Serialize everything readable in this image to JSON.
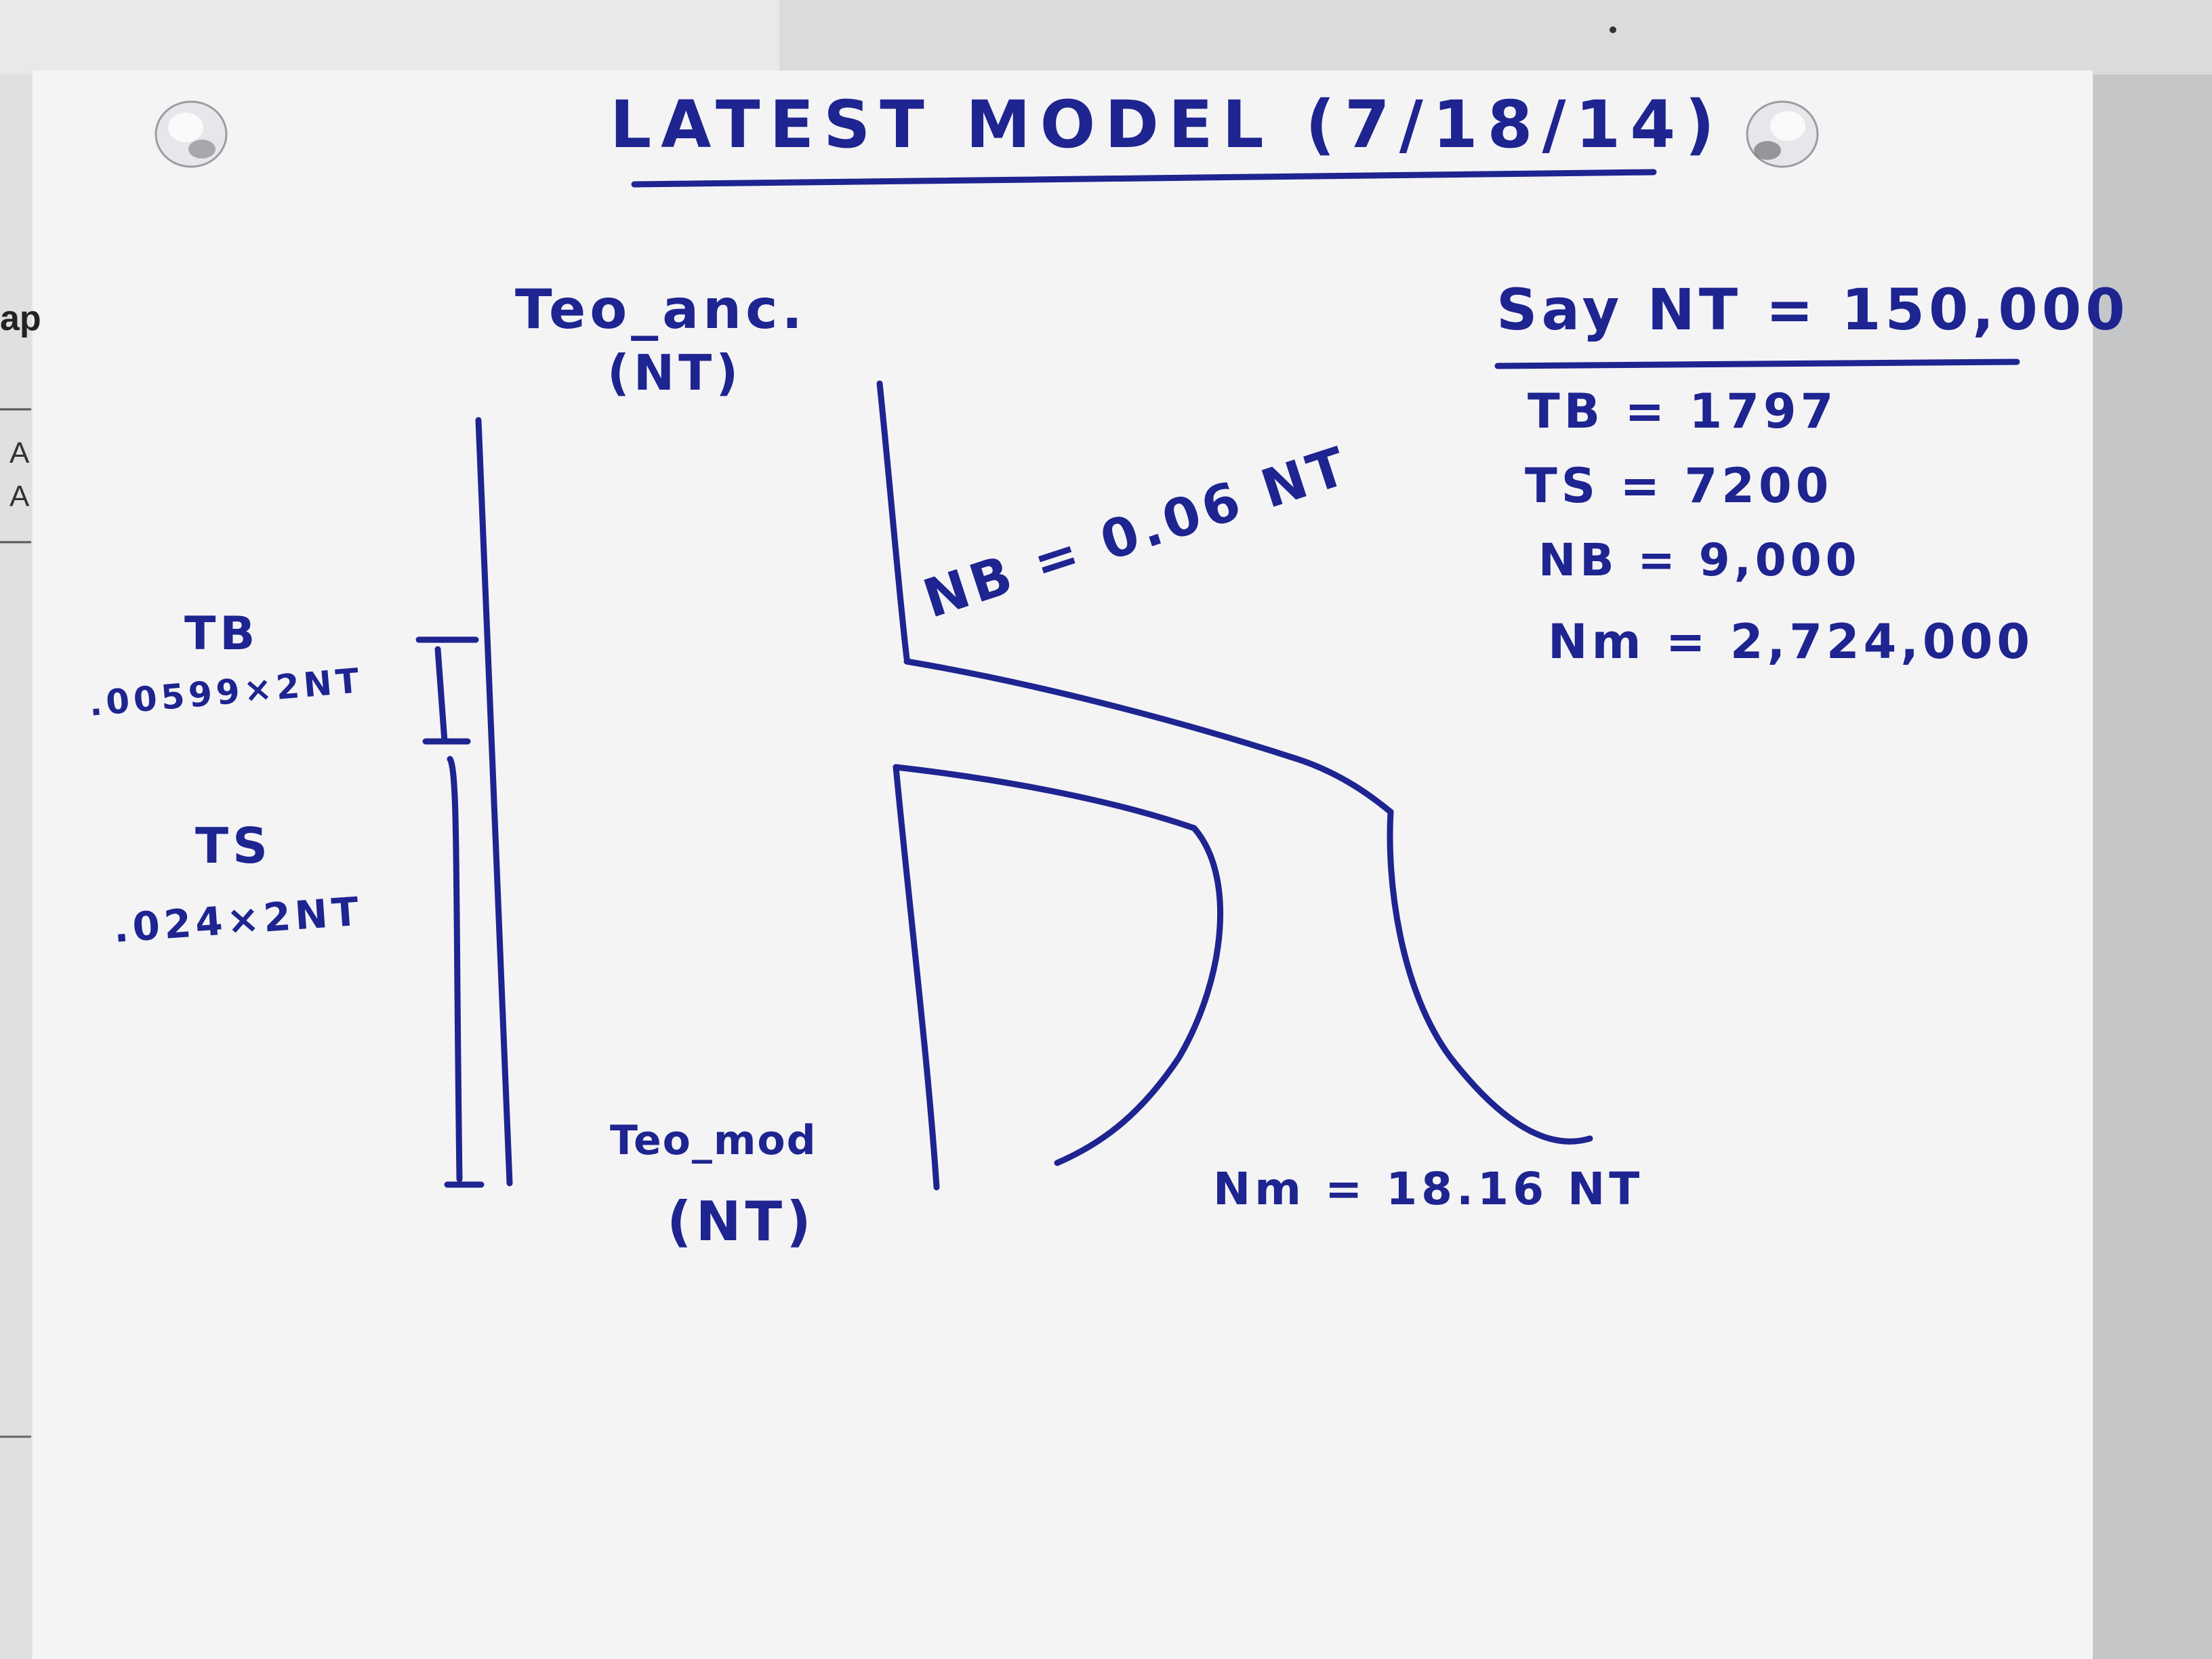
{
  "note": {
    "title": "LATEST MODEL (7/18/14)",
    "pop_ancient": "Teo_anc.",
    "pop_ancient_size": "(NT)",
    "pop_modern": "Teo_mod",
    "pop_modern_size": "(NT)",
    "bottleneck_label": "NB = 0.06 NT",
    "modern_label": "Nm = 18.16 NT",
    "tb_label": "TB",
    "tb_formula": ".00599×2NT",
    "ts_label": "TS",
    "ts_formula": ".024×2NT",
    "say_line": "Say NT = 150,000",
    "values": [
      "TB = 1797",
      "TS = 7200",
      "NB = 9,000",
      "Nm = 2,724,000"
    ]
  },
  "background_text": {
    "left_fragment": "ap",
    "row_a1": "A",
    "row_a2": "A"
  },
  "colors": {
    "ink": "#1e2490",
    "paper": "#f4f4f5",
    "wall": "#bfc1c3"
  }
}
